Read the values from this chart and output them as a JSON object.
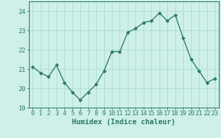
{
  "x": [
    0,
    1,
    2,
    3,
    4,
    5,
    6,
    7,
    8,
    9,
    10,
    11,
    12,
    13,
    14,
    15,
    16,
    17,
    18,
    19,
    20,
    21,
    22,
    23
  ],
  "y": [
    21.1,
    20.8,
    20.6,
    21.2,
    20.3,
    19.8,
    19.4,
    19.8,
    20.2,
    20.9,
    21.9,
    21.9,
    22.9,
    23.1,
    23.4,
    23.5,
    23.9,
    23.5,
    23.8,
    22.6,
    21.5,
    20.9,
    20.3,
    20.5
  ],
  "line_color": "#2d7a68",
  "marker": "D",
  "markersize": 2.5,
  "linewidth": 1.0,
  "bg_color": "#cef0e8",
  "grid_color": "#a0d8cc",
  "xlabel": "Humidex (Indice chaleur)",
  "xlim": [
    -0.5,
    23.5
  ],
  "ylim": [
    19,
    24.5
  ],
  "yticks": [
    19,
    20,
    21,
    22,
    23,
    24
  ],
  "xticks": [
    0,
    1,
    2,
    3,
    4,
    5,
    6,
    7,
    8,
    9,
    10,
    11,
    12,
    13,
    14,
    15,
    16,
    17,
    18,
    19,
    20,
    21,
    22,
    23
  ],
  "xlabel_fontsize": 7.5,
  "tick_fontsize": 6.5,
  "tick_color": "#2d7a68",
  "axis_color": "#2d7a68"
}
